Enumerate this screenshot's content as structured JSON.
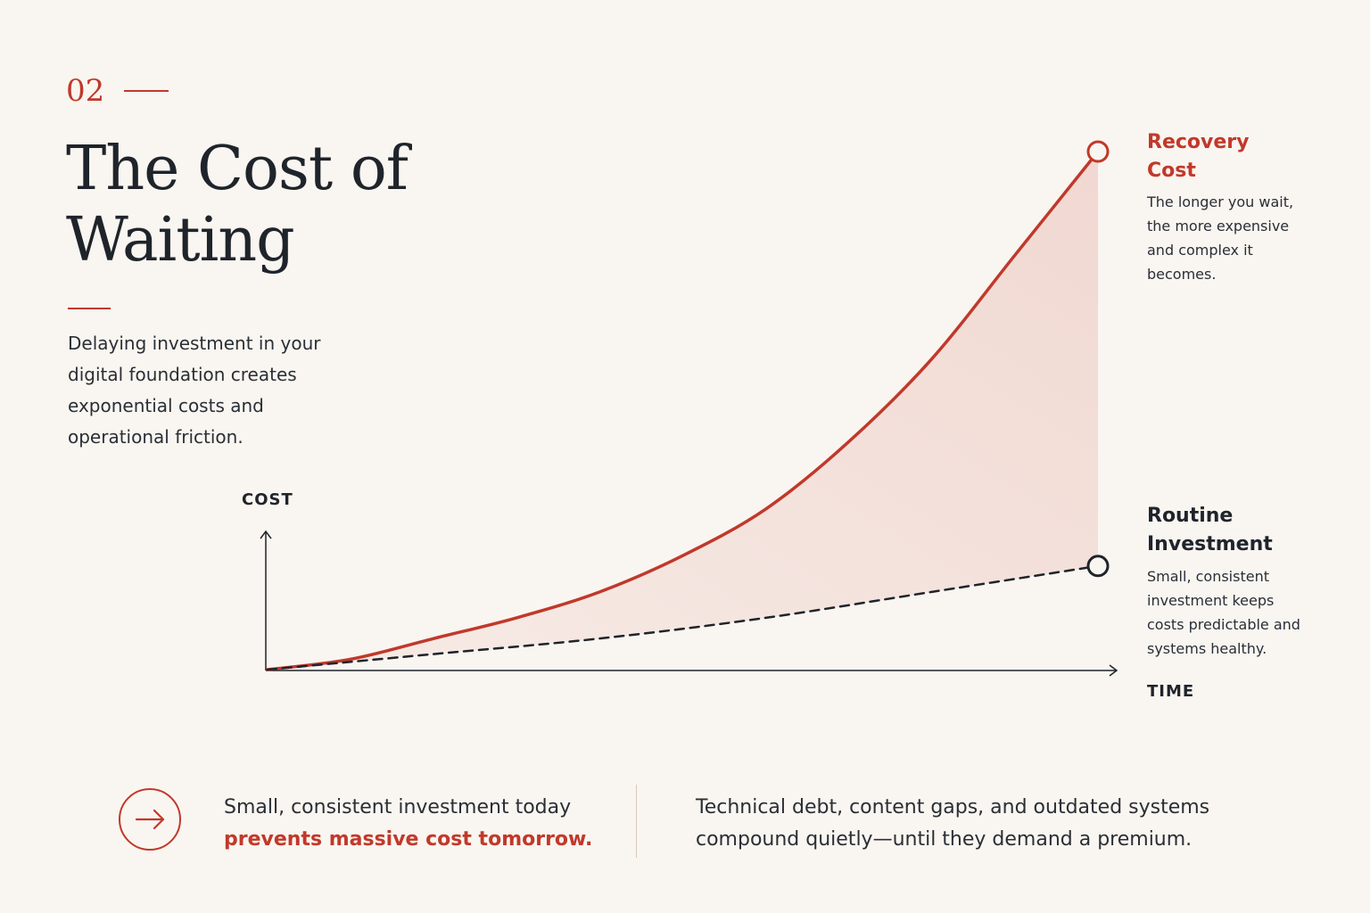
{
  "section": {
    "number": "02"
  },
  "title": "The Cost of Waiting",
  "intro": "Delaying investment in your digital foundation creates exponential costs and operational friction.",
  "colors": {
    "accent": "#c0392b",
    "ink": "#1f242b",
    "background": "#f9f5f0"
  },
  "chart_data": {
    "type": "line",
    "title": "",
    "xlabel": "TIME",
    "ylabel": "COST",
    "grid": false,
    "series": [
      {
        "name": "Recovery Cost",
        "color": "#c0392b",
        "style": "solid",
        "end_marker": "circle",
        "fill_to_series": "Routine Investment",
        "x": [
          0,
          0.1,
          0.2,
          0.3,
          0.4,
          0.5,
          0.6,
          0.7,
          0.8,
          0.9,
          1.0
        ],
        "values": [
          0,
          0.02,
          0.06,
          0.1,
          0.15,
          0.22,
          0.31,
          0.44,
          0.6,
          0.8,
          1.0
        ]
      },
      {
        "name": "Routine Investment",
        "color": "#1f242b",
        "style": "dashed",
        "end_marker": "circle",
        "x": [
          0,
          0.2,
          0.4,
          0.6,
          0.8,
          1.0
        ],
        "values": [
          0,
          0.03,
          0.06,
          0.1,
          0.15,
          0.2
        ]
      }
    ]
  },
  "annotations": {
    "recovery": {
      "title": "Recovery Cost",
      "desc": "The longer you wait, the more expensive and complex it becomes."
    },
    "routine": {
      "title": "Routine Investment",
      "desc": "Small, consistent investment keeps costs predictable and systems healthy."
    }
  },
  "footer": {
    "icon": "arrow-right-icon",
    "left_line1": "Small, consistent investment today",
    "left_emphasis": "prevents massive cost tomorrow.",
    "right": "Technical debt, content gaps, and outdated systems compound quietly—until they demand a premium."
  }
}
